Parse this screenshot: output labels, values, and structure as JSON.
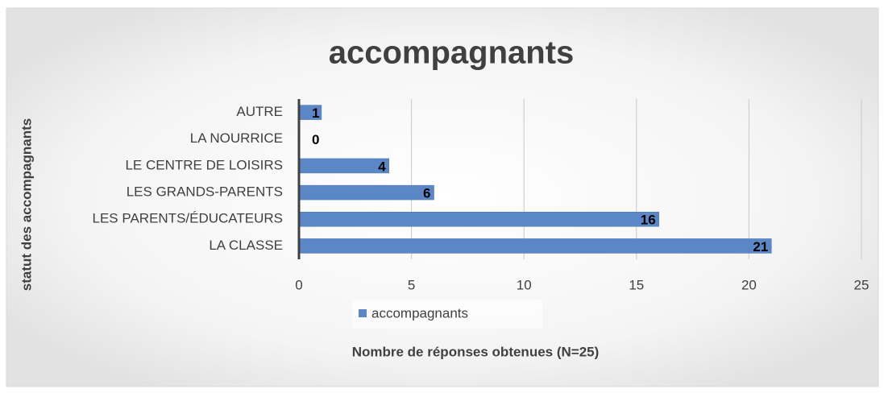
{
  "chart_data": {
    "type": "bar",
    "orientation": "horizontal",
    "title": "accompagnants",
    "x_label": "Nombre de réponses obtenues (N=25)",
    "y_label": "statut des accompagnants",
    "categories": [
      "AUTRE",
      "LA NOURRICE",
      "LE CENTRE DE LOISIRS",
      "LES GRANDS-PARENTS",
      "LES PARENTS/ÉDUCATEURS",
      "LA CLASSE"
    ],
    "series": [
      {
        "name": "accompagnants",
        "color": "#5b87c7",
        "values": [
          1,
          0,
          4,
          6,
          16,
          21
        ]
      }
    ],
    "xlim": [
      0,
      25
    ],
    "xticks": [
      0,
      5,
      10,
      15,
      20,
      25
    ],
    "grid": true,
    "legend": "bottom"
  }
}
